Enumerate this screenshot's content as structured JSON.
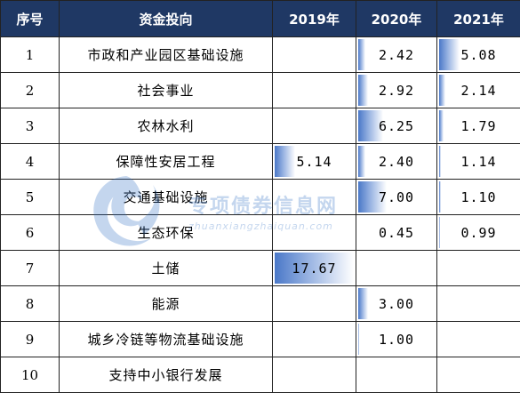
{
  "table": {
    "headers": [
      "序号",
      "资金投向",
      "2019年",
      "2020年",
      "2021年"
    ],
    "max_value": 17.67,
    "rows": [
      {
        "idx": "1",
        "name": "市政和产业园区基础设施",
        "v2019": null,
        "v2020": "2.42",
        "v2021": "5.08"
      },
      {
        "idx": "2",
        "name": "社会事业",
        "v2019": null,
        "v2020": "2.92",
        "v2021": "2.14"
      },
      {
        "idx": "3",
        "name": "农林水利",
        "v2019": null,
        "v2020": "6.25",
        "v2021": "1.79"
      },
      {
        "idx": "4",
        "name": "保障性安居工程",
        "v2019": "5.14",
        "v2020": "2.40",
        "v2021": "1.14"
      },
      {
        "idx": "5",
        "name": "交通基础设施",
        "v2019": null,
        "v2020": "7.00",
        "v2021": "1.10"
      },
      {
        "idx": "6",
        "name": "生态环保",
        "v2019": null,
        "v2020": "0.45",
        "v2021": "0.99"
      },
      {
        "idx": "7",
        "name": "土储",
        "v2019": "17.67",
        "v2020": null,
        "v2021": null
      },
      {
        "idx": "8",
        "name": "能源",
        "v2019": null,
        "v2020": "3.00",
        "v2021": null
      },
      {
        "idx": "9",
        "name": "城乡冷链等物流基础设施",
        "v2019": null,
        "v2020": "1.00",
        "v2021": null
      },
      {
        "idx": "10",
        "name": "支持中小银行发展",
        "v2019": null,
        "v2020": null,
        "v2021": null
      }
    ]
  },
  "watermark": {
    "text": "专项债券信息网",
    "sub": "zhuanxiangzhaiquan.com",
    "color": "#2f6fc4",
    "logo_icon": "swirl-logo-icon"
  },
  "colors": {
    "header_bg": "#1f3864",
    "header_text": "#ffffff",
    "bar_start": "#4a78c8"
  }
}
